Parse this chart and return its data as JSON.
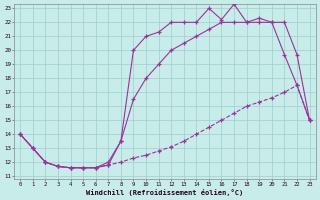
{
  "xlabel": "Windchill (Refroidissement éolien,°C)",
  "background_color": "#c8ecea",
  "grid_color": "#9ecfcc",
  "line_color": "#993399",
  "x_min": 0,
  "x_max": 23,
  "y_min": 11,
  "y_max": 23,
  "x_ticks": [
    0,
    1,
    2,
    3,
    4,
    5,
    6,
    7,
    8,
    9,
    10,
    11,
    12,
    13,
    14,
    15,
    16,
    17,
    18,
    19,
    20,
    21,
    22,
    23
  ],
  "y_ticks": [
    11,
    12,
    13,
    14,
    15,
    16,
    17,
    18,
    19,
    20,
    21,
    22,
    23
  ],
  "upper_x": [
    0,
    1,
    2,
    3,
    4,
    5,
    6,
    7,
    8,
    9,
    10,
    11,
    12,
    13,
    14,
    15,
    16,
    17,
    18,
    19,
    20,
    21,
    22,
    23
  ],
  "upper_y": [
    14,
    13,
    12,
    11.7,
    11.6,
    11.6,
    11.6,
    12,
    13.5,
    20,
    21,
    21.3,
    22,
    22,
    22,
    23,
    22.2,
    23.3,
    22,
    22.3,
    22,
    19.7,
    17.5,
    15
  ],
  "mid_x": [
    0,
    1,
    2,
    3,
    4,
    5,
    6,
    7,
    8,
    9,
    10,
    11,
    12,
    13,
    14,
    15,
    16,
    17,
    18,
    19,
    20,
    21,
    22,
    23
  ],
  "mid_y": [
    14,
    13,
    12,
    11.7,
    11.6,
    11.6,
    11.6,
    11.8,
    13.5,
    16.5,
    18,
    19,
    20,
    20.5,
    21,
    21.5,
    22,
    22,
    22,
    22,
    22,
    22,
    19.7,
    15
  ],
  "lower_x": [
    0,
    1,
    2,
    3,
    4,
    5,
    6,
    7,
    8,
    9,
    10,
    11,
    12,
    13,
    14,
    15,
    16,
    17,
    18,
    19,
    20,
    21,
    22,
    23
  ],
  "lower_y": [
    14,
    13,
    12,
    11.7,
    11.6,
    11.6,
    11.6,
    11.8,
    12,
    12.3,
    12.5,
    12.8,
    13.1,
    13.5,
    14,
    14.5,
    15,
    15.5,
    16,
    16.3,
    16.6,
    17,
    17.5,
    15
  ]
}
